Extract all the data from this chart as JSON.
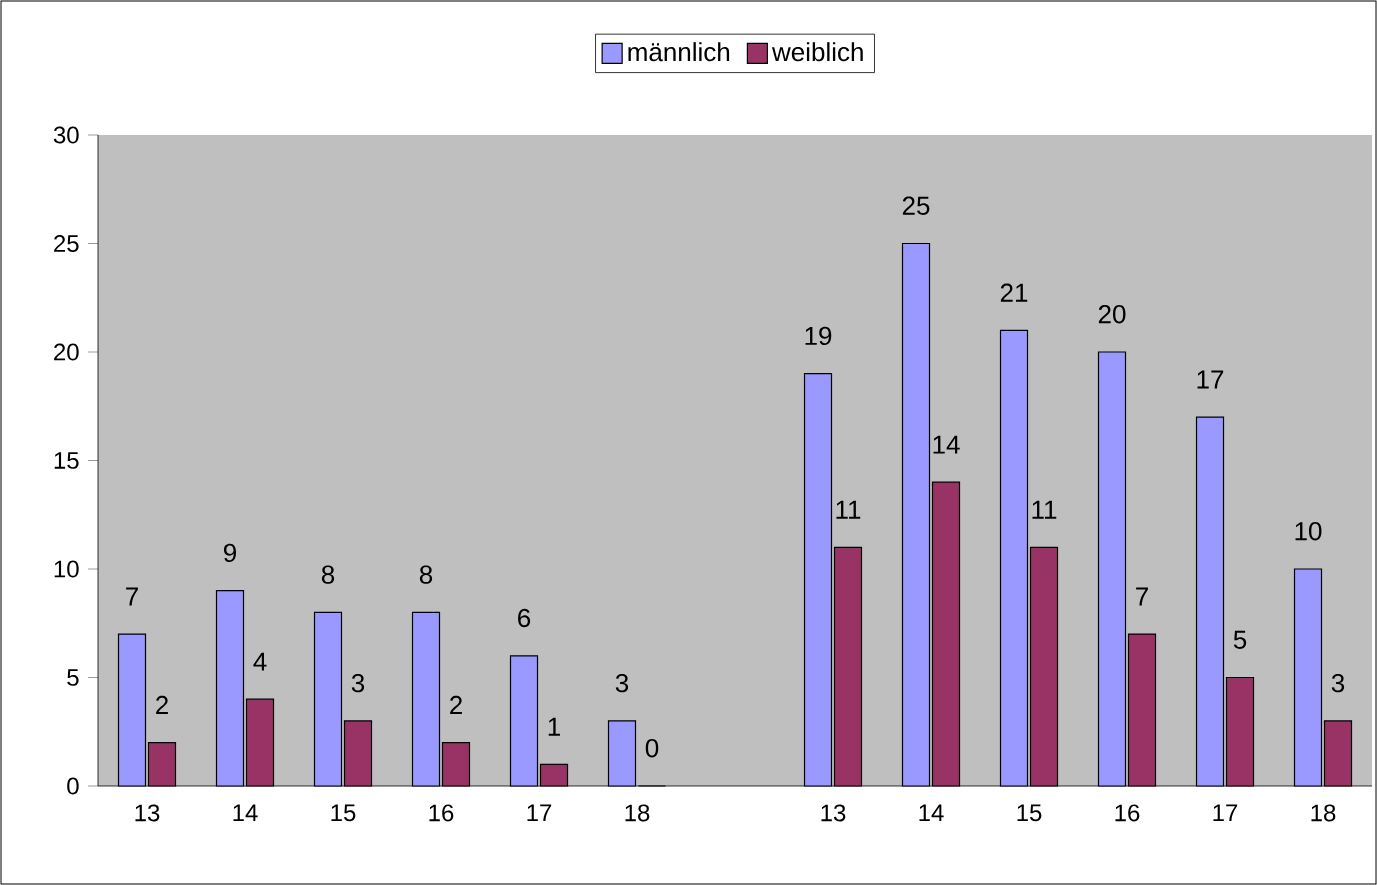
{
  "chart_data": {
    "type": "bar",
    "categories": [
      "13",
      "14",
      "15",
      "16",
      "17",
      "18",
      null,
      "13",
      "14",
      "15",
      "16",
      "17",
      "18"
    ],
    "series": [
      {
        "name": "männlich",
        "color": "#9999ff",
        "values": [
          7,
          9,
          8,
          8,
          6,
          3,
          null,
          19,
          25,
          21,
          20,
          17,
          10
        ]
      },
      {
        "name": "weiblich",
        "color": "#993366",
        "values": [
          2,
          4,
          3,
          2,
          1,
          0,
          null,
          11,
          14,
          11,
          7,
          5,
          3
        ]
      }
    ],
    "ylim": [
      0,
      30
    ],
    "yticks": [
      0,
      5,
      10,
      15,
      20,
      25,
      30
    ],
    "legend": "top",
    "data_labels": true
  }
}
